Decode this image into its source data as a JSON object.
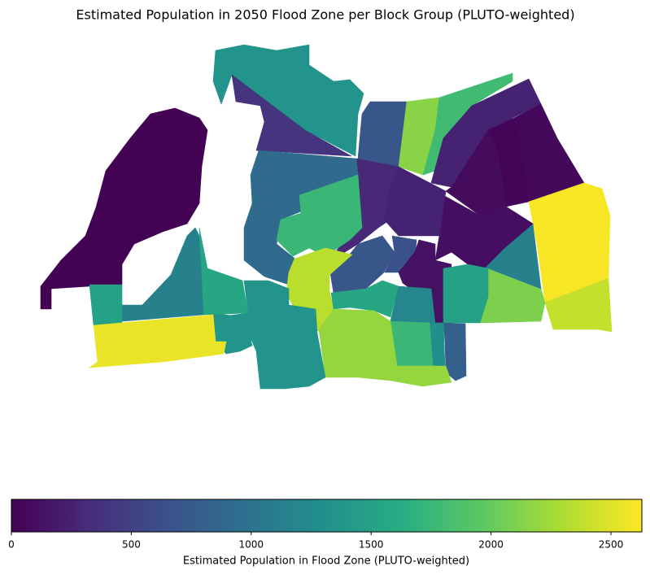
{
  "chart_data": {
    "type": "choropleth",
    "title": "Estimated Population in 2050 Flood Zone per Block Group (PLUTO-weighted)",
    "colorbar_label": "Estimated Population in Flood Zone (PLUTO-weighted)",
    "colormap": "viridis",
    "clim": [
      0,
      2629
    ],
    "cticks": [
      0,
      500,
      1000,
      1500,
      2000,
      2500
    ],
    "values": [
      5,
      1350,
      400,
      700,
      2150,
      1800,
      250,
      50,
      30,
      80,
      2600,
      2400,
      2100,
      1150,
      100,
      300,
      250,
      900,
      1750,
      700,
      650,
      2350,
      120,
      1550,
      1200,
      1500,
      800,
      1300,
      1750,
      2200,
      1350,
      1350,
      1550,
      1150,
      1500,
      2550
    ]
  }
}
